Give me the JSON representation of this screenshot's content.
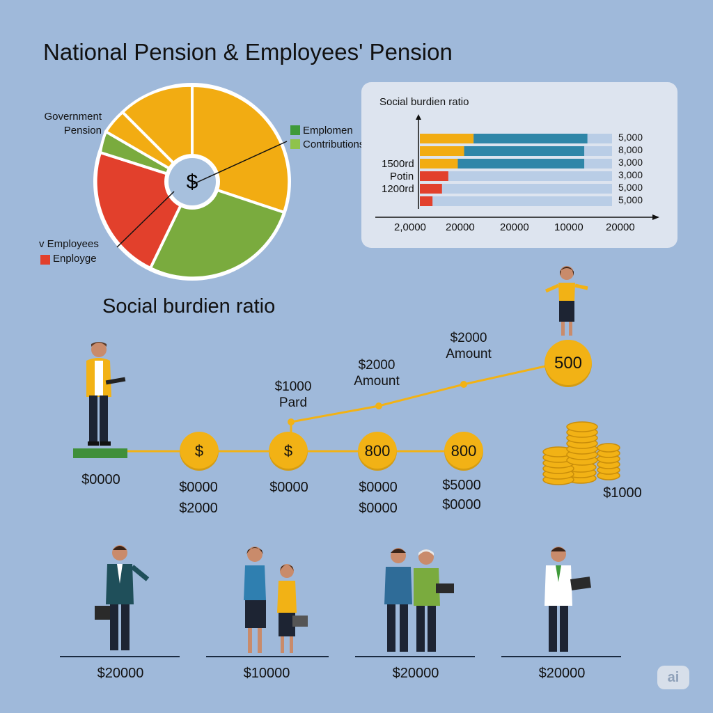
{
  "header": {
    "title": "National Pension & Employees' Pension"
  },
  "pie": {
    "center_symbol": "$",
    "label_gov_line1": "Government",
    "label_gov_line2": "Pension",
    "label_employees": "v Employees",
    "label_employee": "Enployge",
    "legend_emp": "Emplomen",
    "legend_contrib": "Contributions",
    "colors": {
      "orange": "#f2ac12",
      "green": "#7aab3e",
      "red": "#e2402c",
      "hub": "#a7c0dd"
    }
  },
  "bar_panel": {
    "title": "Social burdien ratio",
    "y_labels": [
      "1500rd",
      "Potin",
      "1200rd"
    ],
    "row_values": [
      "5,000",
      "8,000",
      "3,000",
      "3,000",
      "5,000",
      "5,000"
    ],
    "x_ticks": [
      "2,0000",
      "20000",
      "20000",
      "10000",
      "20000"
    ],
    "rows": [
      {
        "orange": 0.17,
        "blue": 0.36,
        "red": 0
      },
      {
        "orange": 0.14,
        "blue": 0.38,
        "red": 0
      },
      {
        "orange": 0.12,
        "blue": 0.4,
        "red": 0
      },
      {
        "orange": 0,
        "blue": 0,
        "red": 0.09
      },
      {
        "orange": 0,
        "blue": 0,
        "red": 0.07
      },
      {
        "orange": 0,
        "blue": 0,
        "red": 0.04
      }
    ],
    "colors": {
      "orange": "#f2ac12",
      "blue": "#2f86a8",
      "red": "#e2402c",
      "track": "#b9cde6"
    }
  },
  "timeline": {
    "subtitle": "Social burdien ratio",
    "start_value": "$0000",
    "coins": [
      {
        "symbol": "$",
        "v1": "$0000",
        "v2": "$2000"
      },
      {
        "symbol": "$",
        "v1": "$0000",
        "v2": ""
      },
      {
        "symbol": "800",
        "v1": "$0000",
        "v2": "$0000"
      },
      {
        "symbol": "800",
        "v1": "$5000",
        "v2": "$0000"
      }
    ],
    "top_coin": "500",
    "ann1_line1": "$1000",
    "ann1_line2": "Pard",
    "ann2_line1": "$2000",
    "ann2_line2": "Amount",
    "ann3_line1": "$2000",
    "ann3_line2": "Amount",
    "stack_value": "$1000"
  },
  "people": [
    {
      "value": "$20000"
    },
    {
      "value": "$10000"
    },
    {
      "value": "$20000"
    },
    {
      "value": "$20000"
    }
  ],
  "logo": "ai"
}
